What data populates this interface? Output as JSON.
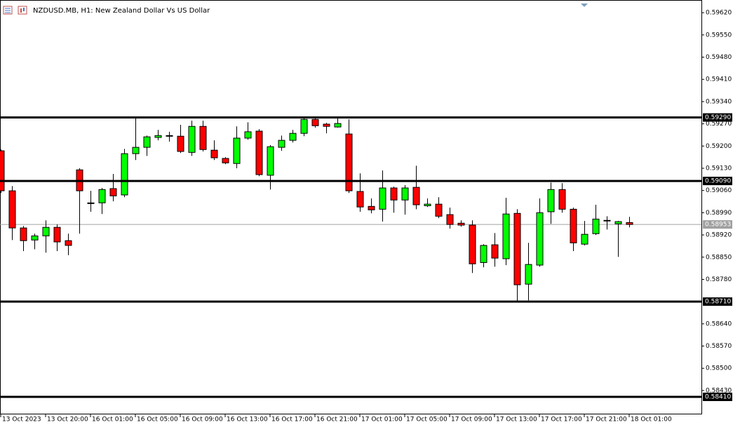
{
  "chart_data": {
    "type": "candlestick",
    "title": "NZDUSD.MB, H1:  New Zealand Dollar Vs US Dollar",
    "categories": [
      "13 Oct 2023",
      null,
      null,
      null,
      "13 Oct 20:00",
      null,
      null,
      null,
      "16 Oct 01:00",
      null,
      null,
      null,
      "16 Oct 05:00",
      null,
      null,
      null,
      "16 Oct 09:00",
      null,
      null,
      null,
      "16 Oct 13:00",
      null,
      null,
      null,
      "16 Oct 17:00",
      null,
      null,
      null,
      "16 Oct 21:00",
      null,
      null,
      null,
      "17 Oct 01:00",
      null,
      null,
      null,
      "17 Oct 05:00",
      null,
      null,
      null,
      "17 Oct 09:00",
      null,
      null,
      null,
      "17 Oct 13:00",
      null,
      null,
      null,
      "17 Oct 17:00",
      null,
      null,
      null,
      "17 Oct 21:00",
      null,
      null,
      null,
      "18 Oct 01:00"
    ],
    "open": [
      0.59185,
      0.59059,
      0.58942,
      0.58904,
      0.58917,
      0.58944,
      0.58902,
      0.59125,
      0.59019,
      0.59021,
      0.59066,
      0.59046,
      0.59176,
      0.59196,
      0.59227,
      0.59231,
      0.59231,
      0.5918,
      0.59262,
      0.59187,
      0.59161,
      0.59145,
      0.59225,
      0.59247,
      0.59108,
      0.59196,
      0.59218,
      0.5924,
      0.59284,
      0.59269,
      0.5926,
      0.59238,
      0.59057,
      0.5901,
      0.59001,
      0.59068,
      0.5903,
      0.5907,
      0.59012,
      0.59017,
      0.58984,
      0.58957,
      0.58951,
      0.58833,
      0.58889,
      0.58845,
      0.58988,
      0.58765,
      0.58825,
      0.58993,
      0.59063,
      0.59001,
      0.58891,
      0.58924,
      0.58966,
      0.58955,
      0.58959
    ],
    "high": [
      0.59189,
      0.59074,
      0.58948,
      0.58924,
      0.58966,
      0.58953,
      0.58924,
      0.5913,
      0.59059,
      0.59068,
      0.59112,
      0.59191,
      0.59289,
      0.59233,
      0.59251,
      0.59245,
      0.59267,
      0.5928,
      0.5928,
      0.59218,
      0.59165,
      0.59262,
      0.59275,
      0.59253,
      0.59203,
      0.59233,
      0.59251,
      0.59289,
      0.59289,
      0.59273,
      0.59289,
      0.59284,
      0.59114,
      0.59035,
      0.59123,
      0.59072,
      0.59077,
      0.59138,
      0.59035,
      0.59039,
      0.59006,
      0.58966,
      0.58966,
      0.58891,
      0.58926,
      0.59037,
      0.59001,
      0.58895,
      0.59035,
      0.59085,
      0.59083,
      0.59006,
      0.58964,
      0.59015,
      0.58979,
      0.58964,
      0.58977
    ],
    "low": [
      0.59052,
      0.58904,
      0.58869,
      0.58875,
      0.58864,
      0.58869,
      0.58856,
      0.58924,
      0.58993,
      0.58986,
      0.59026,
      0.59039,
      0.59156,
      0.59169,
      0.59218,
      0.59214,
      0.59178,
      0.59169,
      0.59183,
      0.59156,
      0.59143,
      0.5913,
      0.5922,
      0.59105,
      0.59063,
      0.59185,
      0.59211,
      0.59231,
      0.59258,
      0.5924,
      0.59258,
      0.59052,
      0.58993,
      0.58988,
      0.58962,
      0.5899,
      0.58984,
      0.59001,
      0.59008,
      0.58973,
      0.5894,
      0.58946,
      0.588,
      0.58818,
      0.5882,
      0.58825,
      0.58712,
      0.58714,
      0.5882,
      0.58955,
      0.5899,
      0.58869,
      0.58887,
      0.5892,
      0.58937,
      0.58851,
      0.58944
    ],
    "close": [
      0.59059,
      0.58942,
      0.58902,
      0.58917,
      0.58944,
      0.58898,
      0.58887,
      0.59059,
      0.59021,
      0.59063,
      0.59043,
      0.59176,
      0.59196,
      0.59229,
      0.59233,
      0.59233,
      0.59183,
      0.59262,
      0.59189,
      0.59163,
      0.59147,
      0.59225,
      0.59245,
      0.5911,
      0.59198,
      0.59218,
      0.5924,
      0.59284,
      0.59264,
      0.59262,
      0.59271,
      0.59059,
      0.59008,
      0.58999,
      0.59068,
      0.5903,
      0.59068,
      0.59015,
      0.59017,
      0.58979,
      0.58953,
      0.58951,
      0.58829,
      0.58887,
      0.58847,
      0.58986,
      0.58763,
      0.58827,
      0.5899,
      0.59063,
      0.59001,
      0.58895,
      0.58922,
      0.5897,
      0.58964,
      0.58962,
      0.58953
    ],
    "up_color": "#00ff00",
    "down_color": "#ff0000",
    "ylim": [
      0.58357,
      0.5966
    ],
    "yticks": [
      {
        "value": 0.5962,
        "label": "0.59620"
      },
      {
        "value": 0.5955,
        "label": "0.59550"
      },
      {
        "value": 0.5948,
        "label": "0.59480"
      },
      {
        "value": 0.5941,
        "label": "0.59410"
      },
      {
        "value": 0.5934,
        "label": "0.59340"
      },
      {
        "value": 0.5927,
        "label": "0.59270"
      },
      {
        "value": 0.592,
        "label": "0.59200"
      },
      {
        "value": 0.5913,
        "label": "0.59130"
      },
      {
        "value": 0.5906,
        "label": "0.59060"
      },
      {
        "value": 0.5899,
        "label": "0.58990"
      },
      {
        "value": 0.5892,
        "label": "0.58920"
      },
      {
        "value": 0.5885,
        "label": "0.58850"
      },
      {
        "value": 0.5878,
        "label": "0.58780"
      },
      {
        "value": 0.5864,
        "label": "0.58640"
      },
      {
        "value": 0.5857,
        "label": "0.58570"
      },
      {
        "value": 0.585,
        "label": "0.58500"
      },
      {
        "value": 0.5843,
        "label": "0.58430"
      }
    ],
    "levels": [
      {
        "value": 0.5929,
        "label": "0.59290"
      },
      {
        "value": 0.5909,
        "label": "0.59090"
      },
      {
        "value": 0.5871,
        "label": "0.58710"
      },
      {
        "value": 0.5841,
        "label": "0.58410"
      }
    ],
    "current_price": 0.58953
  }
}
